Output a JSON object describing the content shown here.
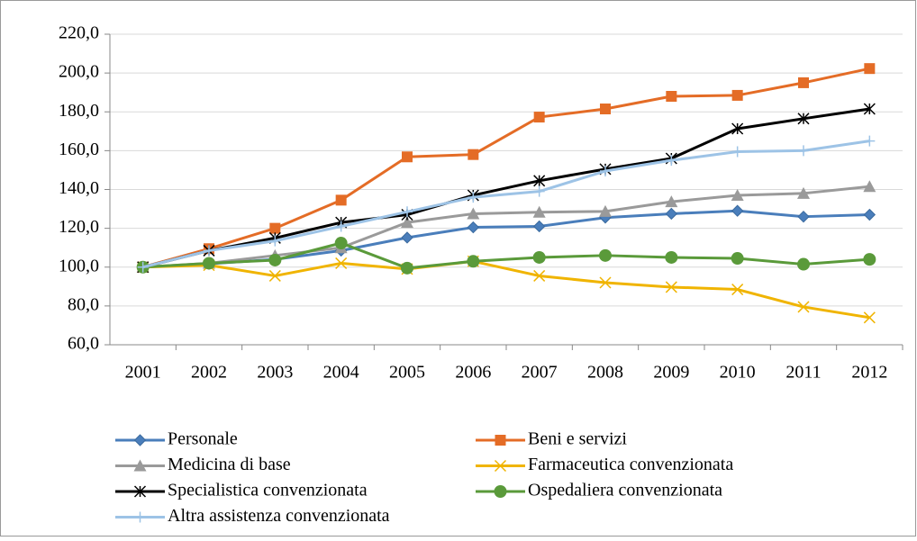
{
  "chart_data": {
    "type": "line",
    "categories": [
      "2001",
      "2002",
      "2003",
      "2004",
      "2005",
      "2006",
      "2007",
      "2008",
      "2009",
      "2010",
      "2011",
      "2012"
    ],
    "ylim": [
      60,
      220
    ],
    "yticks": [
      {
        "value": 60,
        "label": "60,0"
      },
      {
        "value": 80,
        "label": "80,0"
      },
      {
        "value": 100,
        "label": "100,0"
      },
      {
        "value": 120,
        "label": "120,0"
      },
      {
        "value": 140,
        "label": "140,0"
      },
      {
        "value": 160,
        "label": "160,0"
      },
      {
        "value": 180,
        "label": "180,0"
      },
      {
        "value": 200,
        "label": "200,0"
      },
      {
        "value": 220,
        "label": "220,0"
      }
    ],
    "grid": true,
    "legend": "bottom",
    "series": [
      {
        "name": "Personale",
        "color": "#4a7ebb",
        "marker": "diamond",
        "values": [
          100,
          101.7,
          104,
          108.5,
          115.2,
          120.5,
          121,
          125.5,
          127.5,
          129,
          126,
          127
        ]
      },
      {
        "name": "Beni e servizi",
        "color": "#e46c26",
        "marker": "square",
        "values": [
          100,
          109.5,
          120,
          134.5,
          156.8,
          158,
          177.3,
          181.5,
          188,
          188.5,
          195,
          202.3
        ]
      },
      {
        "name": "Medicina di base",
        "color": "#9a9a9a",
        "marker": "triangle",
        "values": [
          100,
          102,
          106,
          110,
          123,
          127.5,
          128.3,
          128.7,
          133.7,
          137,
          138,
          141.5
        ]
      },
      {
        "name": "Farmaceutica convenzionata",
        "color": "#f0b400",
        "marker": "x",
        "values": [
          100,
          101,
          95.5,
          102,
          99,
          103,
          95.5,
          92,
          89.7,
          88.5,
          79.5,
          74
        ]
      },
      {
        "name": "Specialistica convenzionata",
        "color": "#000000",
        "marker": "star",
        "values": [
          100,
          108.5,
          115,
          123,
          127,
          137,
          144.5,
          150.5,
          156,
          171.3,
          176.5,
          181.5
        ]
      },
      {
        "name": "Ospedaliera convenzionata",
        "color": "#5a9a3a",
        "marker": "circle",
        "values": [
          100,
          102,
          103.6,
          112.4,
          99.5,
          103,
          105,
          106,
          105,
          104.5,
          101.5,
          104
        ]
      },
      {
        "name": "Altra assistenza convenzionata",
        "color": "#9dc3e6",
        "marker": "plus",
        "values": [
          100,
          108.5,
          113.5,
          121,
          128.5,
          136,
          139,
          149.5,
          155,
          159.5,
          160,
          165
        ]
      }
    ]
  }
}
